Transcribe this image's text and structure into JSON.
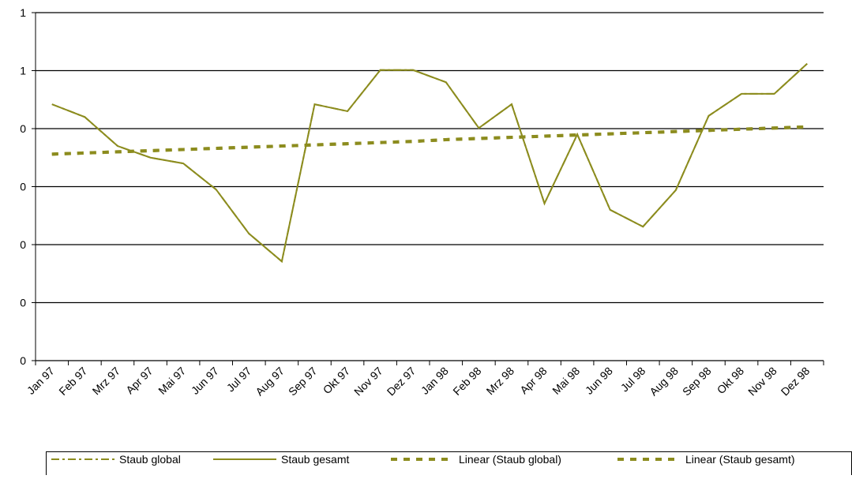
{
  "chart_data": {
    "type": "line",
    "categories": [
      "Jan 97",
      "Feb 97",
      "Mrz 97",
      "Apr 97",
      "Mai 97",
      "Jun 97",
      "Jul 97",
      "Aug 97",
      "Sep 97",
      "Okt 97",
      "Nov 97",
      "Dez 97",
      "Jan 98",
      "Feb 98",
      "Mrz 98",
      "Apr 98",
      "Mai 98",
      "Jun 98",
      "Jul 98",
      "Aug 98",
      "Sep 98",
      "Okt 98",
      "Nov 98",
      "Dez 98"
    ],
    "ylim": [
      0,
      0.6
    ],
    "yticks": [
      {
        "value": 0,
        "label": "0"
      },
      {
        "value": 0.1,
        "label": "0"
      },
      {
        "value": 0.2,
        "label": "0"
      },
      {
        "value": 0.3,
        "label": "0"
      },
      {
        "value": 0.4,
        "label": "0"
      },
      {
        "value": 0.5,
        "label": "1"
      },
      {
        "value": 0.6,
        "label": "1"
      }
    ],
    "grid": true,
    "legend": "bottom",
    "series": [
      {
        "name": "Staub global",
        "color": "#8c8c1e",
        "dash": "dash-dot",
        "values": [
          0.442,
          0.42,
          0.37,
          0.35,
          0.34,
          0.295,
          0.219,
          0.171,
          0.442,
          0.43,
          0.501,
          0.501,
          0.48,
          0.401,
          0.442,
          0.271,
          0.39,
          0.26,
          0.231,
          0.294,
          0.422,
          0.46,
          0.46,
          0.512
        ]
      },
      {
        "name": "Staub gesamt",
        "color": "#8c8c1e",
        "dash": "solid",
        "values": [
          0.442,
          0.42,
          0.37,
          0.35,
          0.34,
          0.295,
          0.219,
          0.171,
          0.442,
          0.43,
          0.501,
          0.501,
          0.48,
          0.401,
          0.442,
          0.271,
          0.39,
          0.26,
          0.231,
          0.294,
          0.422,
          0.46,
          0.46,
          0.512
        ]
      },
      {
        "name": "Linear (Staub global)",
        "color": "#8c8c1e",
        "dash": "dash",
        "values": [
          0.356,
          0.358,
          0.36,
          0.362,
          0.364,
          0.366,
          0.368,
          0.37,
          0.372,
          0.374,
          0.376,
          0.378,
          0.381,
          0.383,
          0.385,
          0.387,
          0.389,
          0.391,
          0.393,
          0.395,
          0.397,
          0.399,
          0.401,
          0.403
        ]
      },
      {
        "name": "Linear (Staub gesamt)",
        "color": "#8c8c1e",
        "dash": "dash",
        "values": [
          0.356,
          0.358,
          0.36,
          0.362,
          0.364,
          0.366,
          0.368,
          0.37,
          0.372,
          0.374,
          0.376,
          0.378,
          0.381,
          0.383,
          0.385,
          0.387,
          0.389,
          0.391,
          0.393,
          0.395,
          0.397,
          0.399,
          0.401,
          0.403
        ]
      }
    ]
  }
}
